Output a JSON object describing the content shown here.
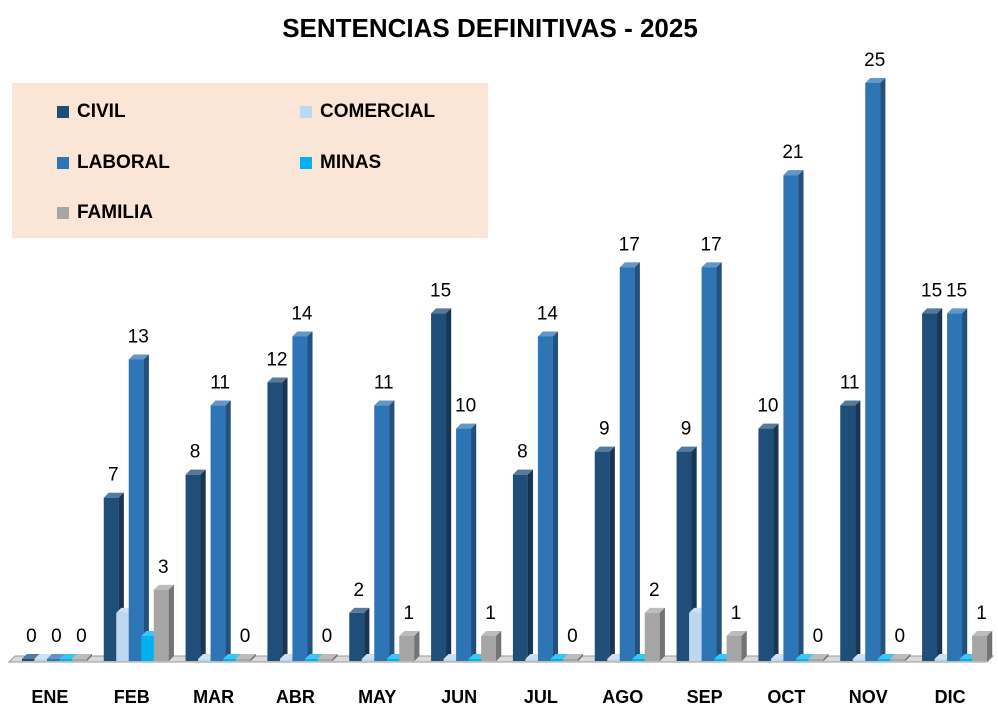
{
  "chart_data": {
    "type": "bar3d",
    "title": "SENTENCIAS DEFINITIVAS - 2025",
    "categories": [
      "ENE",
      "FEB",
      "MAR",
      "ABR",
      "MAY",
      "JUN",
      "JUL",
      "AGO",
      "SEP",
      "OCT",
      "NOV",
      "DIC"
    ],
    "series": [
      {
        "name": "CIVIL",
        "color": "#1f4e79",
        "data_labels": true,
        "values": [
          0,
          7,
          8,
          12,
          2,
          15,
          8,
          9,
          9,
          10,
          11,
          15
        ]
      },
      {
        "name": "COMERCIAL",
        "color": "#bdd7ee",
        "data_labels": false,
        "values": [
          0,
          2,
          0,
          0,
          0,
          0,
          0,
          0,
          2,
          0,
          0,
          0
        ]
      },
      {
        "name": "LABORAL",
        "color": "#2e75b6",
        "data_labels": true,
        "values": [
          0,
          13,
          11,
          14,
          11,
          10,
          14,
          17,
          17,
          21,
          25,
          15
        ]
      },
      {
        "name": "MINAS",
        "color": "#00b0f0",
        "data_labels": false,
        "values": [
          0,
          1,
          0,
          0,
          0,
          0,
          0,
          0,
          0,
          0,
          0,
          0
        ]
      },
      {
        "name": "FAMILIA",
        "color": "#a6a6a6",
        "data_labels": true,
        "values": [
          0,
          3,
          0,
          0,
          1,
          1,
          0,
          2,
          1,
          0,
          0,
          1
        ]
      }
    ],
    "ylim": [
      0,
      25
    ],
    "legend": "upper left",
    "legend_background": "#fbe5d6"
  }
}
